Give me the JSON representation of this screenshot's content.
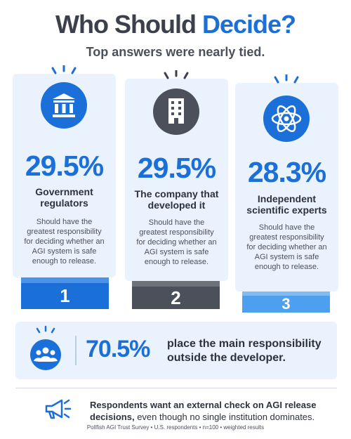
{
  "header": {
    "title_start": "Who Should",
    "title_highlight": "Decide?",
    "subtitle": "Top answers were nearly tied."
  },
  "cards": [
    {
      "percent": "29.5%",
      "label": "Government regulators",
      "description": "Should have the greatest responsibility for deciding whether an AGI system is safe enough to release.",
      "rank": "1"
    },
    {
      "percent": "29.5%",
      "label": "The company that developed it",
      "description": "Should have the greatest responsibility for deciding whether an AGI system is safe enough to release.",
      "rank": "2"
    },
    {
      "percent": "28.3%",
      "label": "Independent scientific experts",
      "description": "Should have the greatest responsibility for deciding whether an AGI system is safe enough to release.",
      "rank": "3"
    }
  ],
  "summary": {
    "percent": "70.5%",
    "text": "place the main responsibility outside the developer."
  },
  "footer": {
    "bold": "Respondents want an external check on AGI release decisions,",
    "text": "even though no single institution dominates.",
    "source": "Pollfish AGI Trust Survey • U.S. respondents • n=100 • weighted results"
  }
}
